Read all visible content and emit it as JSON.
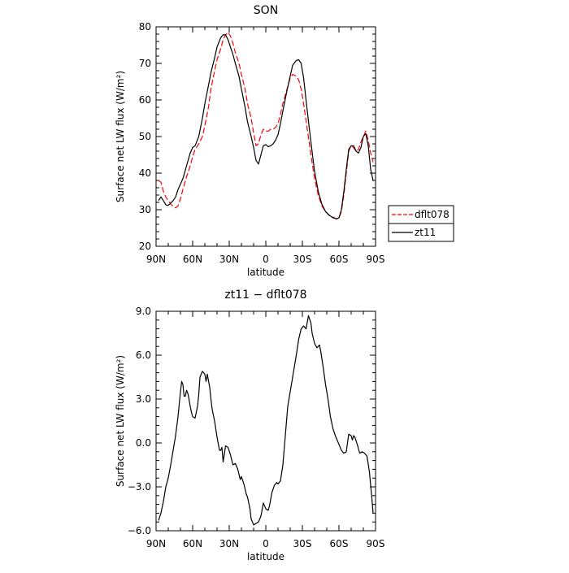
{
  "chart_data": [
    {
      "type": "line",
      "title": "SON",
      "xlabel": "latitude",
      "ylabel": "Surface net LW flux (W/m²)",
      "xlim": [
        90,
        -90
      ],
      "ylim": [
        20,
        80
      ],
      "x_ticks": [
        90,
        60,
        30,
        0,
        -30,
        -60,
        -90
      ],
      "x_tick_labels": [
        "90N",
        "60N",
        "30N",
        "0",
        "30S",
        "60S",
        "90S"
      ],
      "y_ticks": [
        20,
        30,
        40,
        50,
        60,
        70,
        80
      ],
      "y_tick_labels": [
        "20",
        "30",
        "40",
        "50",
        "60",
        "70",
        "80"
      ],
      "grid": false,
      "legend_position": "outside-right",
      "series": [
        {
          "name": "dflt078",
          "color": "#ff0000",
          "dash": "dashed",
          "x": [
            88,
            86,
            84,
            82,
            80,
            78,
            76,
            74,
            72,
            70,
            68,
            65,
            62,
            60,
            58,
            55,
            52,
            50,
            47,
            45,
            42,
            40,
            37,
            35,
            33,
            31,
            29,
            27,
            25,
            22,
            20,
            17,
            15,
            12,
            10,
            8,
            6,
            4,
            2,
            0,
            -2,
            -4,
            -6,
            -8,
            -10,
            -12,
            -14,
            -17,
            -20,
            -22,
            -25,
            -27,
            -29,
            -31,
            -34,
            -37,
            -40,
            -43,
            -46,
            -49,
            -52,
            -55,
            -58,
            -60,
            -62,
            -64,
            -66,
            -68,
            -70,
            -72,
            -74,
            -76,
            -78,
            -80,
            -82,
            -84,
            -86,
            -88
          ],
          "values": [
            38,
            37.5,
            35,
            33.5,
            32.5,
            31.5,
            31,
            30.5,
            31,
            33,
            35.5,
            39,
            42,
            44.5,
            46.5,
            48,
            50,
            53,
            58,
            63,
            68,
            71,
            74,
            76.5,
            77.8,
            78.5,
            77.5,
            75.5,
            73,
            70,
            67,
            63,
            59,
            55,
            51,
            47.5,
            48,
            50.5,
            52,
            51.5,
            51.5,
            52,
            52,
            52.5,
            53.5,
            56,
            59,
            62.5,
            66,
            67,
            66.5,
            65.5,
            63,
            59,
            52,
            45,
            38.5,
            34,
            31,
            29.5,
            28.5,
            28,
            27.5,
            27.8,
            29.5,
            34,
            40,
            46,
            47.5,
            47,
            46,
            46.5,
            48.5,
            50,
            51.5,
            49,
            45.5,
            43
          ]
        },
        {
          "name": "zt11",
          "color": "#000000",
          "dash": "solid",
          "x": [
            88,
            86,
            84,
            82,
            80,
            78,
            76,
            74,
            72,
            70,
            68,
            65,
            62,
            60,
            58,
            55,
            52,
            50,
            47,
            45,
            42,
            40,
            37,
            35,
            33,
            31,
            29,
            27,
            25,
            22,
            20,
            17,
            15,
            12,
            10,
            8,
            6,
            4,
            2,
            0,
            -2,
            -4,
            -6,
            -8,
            -10,
            -12,
            -14,
            -17,
            -20,
            -22,
            -25,
            -27,
            -29,
            -31,
            -34,
            -37,
            -40,
            -43,
            -46,
            -49,
            -52,
            -55,
            -58,
            -60,
            -62,
            -64,
            -66,
            -68,
            -70,
            -72,
            -74,
            -76,
            -78,
            -80,
            -82,
            -84,
            -86,
            -88
          ],
          "values": [
            32.5,
            33.5,
            32.5,
            31.3,
            31.2,
            31.8,
            32.5,
            33.5,
            35.5,
            37,
            38.5,
            42,
            45.5,
            47,
            47.5,
            50,
            55,
            59,
            64,
            67.5,
            71.5,
            74.5,
            77,
            77.8,
            77.8,
            76.5,
            74.5,
            72.5,
            70,
            66.5,
            63,
            58,
            54,
            50,
            47,
            43.5,
            42.5,
            45,
            47.5,
            47.8,
            47.2,
            47.5,
            48,
            49,
            50.5,
            53.5,
            57,
            62,
            66.5,
            69.5,
            70.8,
            71,
            70,
            66,
            57,
            48.5,
            40.5,
            35,
            31.5,
            29.5,
            28.5,
            27.8,
            27.5,
            27.8,
            30,
            35,
            41,
            46.5,
            47.5,
            47.5,
            46,
            45.5,
            47,
            50,
            50.8,
            47.5,
            41,
            38
          ]
        }
      ]
    },
    {
      "type": "line",
      "title": "zt11 − dflt078",
      "xlabel": "latitude",
      "ylabel": "Surface net LW flux (W/m²)",
      "xlim": [
        90,
        -90
      ],
      "ylim": [
        -6,
        9
      ],
      "x_ticks": [
        90,
        60,
        30,
        0,
        -30,
        -60,
        -90
      ],
      "x_tick_labels": [
        "90N",
        "60N",
        "30N",
        "0",
        "30S",
        "60S",
        "90S"
      ],
      "y_ticks": [
        -6,
        -3,
        0,
        3,
        6,
        9
      ],
      "y_tick_labels": [
        "−6.0",
        "−3.0",
        "0.0",
        "3.0",
        "6.0",
        "9.0"
      ],
      "grid": false,
      "series": [
        {
          "color": "#000000",
          "dash": "solid",
          "x": [
            88,
            86,
            84,
            82,
            80,
            78,
            76,
            74,
            72,
            70,
            69,
            68,
            67,
            66,
            65,
            64,
            63,
            62,
            61,
            60,
            58,
            56,
            55,
            54,
            52,
            50,
            49,
            48,
            46,
            45,
            44,
            42,
            40,
            38,
            37,
            36,
            35,
            33,
            31,
            29,
            27,
            25,
            23,
            21,
            20,
            18,
            16,
            15,
            13,
            12,
            10,
            8,
            6,
            4,
            2,
            0,
            -2,
            -3,
            -5,
            -7,
            -9,
            -10,
            -12,
            -14,
            -16,
            -18,
            -20,
            -22,
            -25,
            -27,
            -29,
            -31,
            -33,
            -35,
            -37,
            -38,
            -40,
            -42,
            -44,
            -45,
            -47,
            -49,
            -51,
            -53,
            -55,
            -57,
            -58,
            -60,
            -62,
            -64,
            -66,
            -68,
            -70,
            -71,
            -72,
            -73,
            -75,
            -77,
            -79,
            -81,
            -83,
            -85,
            -87,
            -88
          ],
          "values": [
            -5.3,
            -4.8,
            -4,
            -3,
            -2.4,
            -1.5,
            -0.5,
            0.5,
            1.8,
            3.5,
            4.2,
            4,
            3.2,
            3.2,
            3.6,
            3.4,
            3,
            2.5,
            2.1,
            1.8,
            1.7,
            2.5,
            3.3,
            4.5,
            4.9,
            4.7,
            4.2,
            4.7,
            3.8,
            3,
            2.3,
            1.5,
            0.4,
            -0.5,
            -0.5,
            -0.3,
            -1.3,
            -0.2,
            -0.3,
            -0.8,
            -1.5,
            -1.4,
            -1.8,
            -2.5,
            -2.3,
            -2.8,
            -3.5,
            -3.7,
            -4.5,
            -5.2,
            -5.6,
            -5.5,
            -5.4,
            -5,
            -4.1,
            -4.5,
            -4.6,
            -4.3,
            -3.4,
            -2.9,
            -2.7,
            -2.8,
            -2.6,
            -1.5,
            0.5,
            2.5,
            3.5,
            4.5,
            6,
            7.1,
            7.8,
            8,
            7.8,
            8.7,
            8.2,
            7.5,
            6.8,
            6.5,
            6.7,
            6.3,
            5.2,
            4,
            3,
            1.8,
            1,
            0.5,
            0.3,
            -0.1,
            -0.5,
            -0.7,
            -0.6,
            0.6,
            0.5,
            0.2,
            0.5,
            0.4,
            -0.1,
            -0.7,
            -0.6,
            -0.7,
            -0.9,
            -2,
            -3.8,
            -4.8
          ]
        }
      ]
    }
  ]
}
